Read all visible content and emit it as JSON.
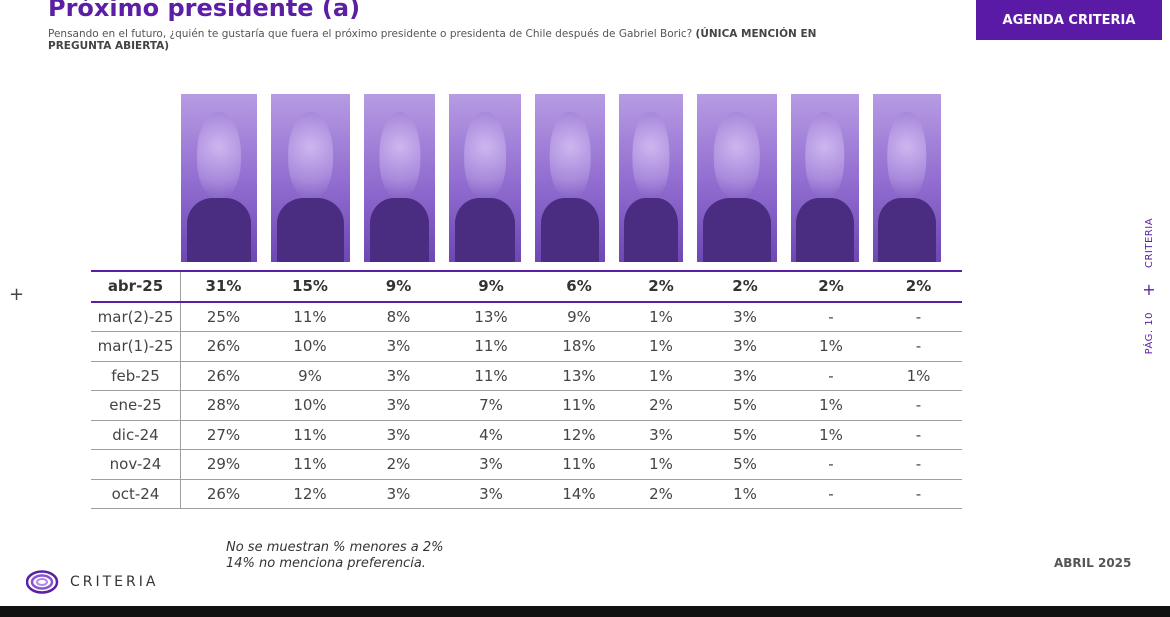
{
  "header": {
    "title": "Próximo presidente (a)",
    "subtitle_text": "Pensando en el futuro, ¿quién te gustaría que fuera el próximo presidente o presidenta de Chile después de Gabriel Boric? ",
    "subtitle_bold": "(ÚNICA MENCIÓN EN PREGUNTA ABIERTA)",
    "badge": "AGENDA CRITERIA"
  },
  "side": {
    "brand": "CRITERIA",
    "plus": "+",
    "page": "PÁG. 10"
  },
  "left_marker": "+",
  "table": {
    "rows": [
      {
        "label": "abr-25",
        "values": [
          "31%",
          "15%",
          "9%",
          "9%",
          "6%",
          "2%",
          "2%",
          "2%",
          "2%"
        ]
      },
      {
        "label": "mar(2)-25",
        "values": [
          "25%",
          "11%",
          "8%",
          "13%",
          "9%",
          "1%",
          "3%",
          "-",
          "-"
        ]
      },
      {
        "label": "mar(1)-25",
        "values": [
          "26%",
          "10%",
          "3%",
          "11%",
          "18%",
          "1%",
          "3%",
          "1%",
          "-"
        ]
      },
      {
        "label": "feb-25",
        "values": [
          "26%",
          "9%",
          "3%",
          "11%",
          "13%",
          "1%",
          "3%",
          "-",
          "1%"
        ]
      },
      {
        "label": "ene-25",
        "values": [
          "28%",
          "10%",
          "3%",
          "7%",
          "11%",
          "2%",
          "5%",
          "1%",
          "-"
        ]
      },
      {
        "label": "dic-24",
        "values": [
          "27%",
          "11%",
          "3%",
          "4%",
          "12%",
          "3%",
          "5%",
          "1%",
          "-"
        ]
      },
      {
        "label": "nov-24",
        "values": [
          "29%",
          "11%",
          "2%",
          "3%",
          "11%",
          "1%",
          "5%",
          "-",
          "-"
        ]
      },
      {
        "label": "oct-24",
        "values": [
          "26%",
          "12%",
          "3%",
          "3%",
          "14%",
          "2%",
          "1%",
          "-",
          "-"
        ]
      }
    ]
  },
  "footer": {
    "note1": "No se muestran % menores a 2%",
    "note2": "14% no menciona preferencia.",
    "logo_text": "CRITERIA",
    "date": "ABRIL 2025"
  },
  "colors": {
    "brand_purple": "#5b1fa3",
    "badge_purple": "#5a1aa6"
  }
}
